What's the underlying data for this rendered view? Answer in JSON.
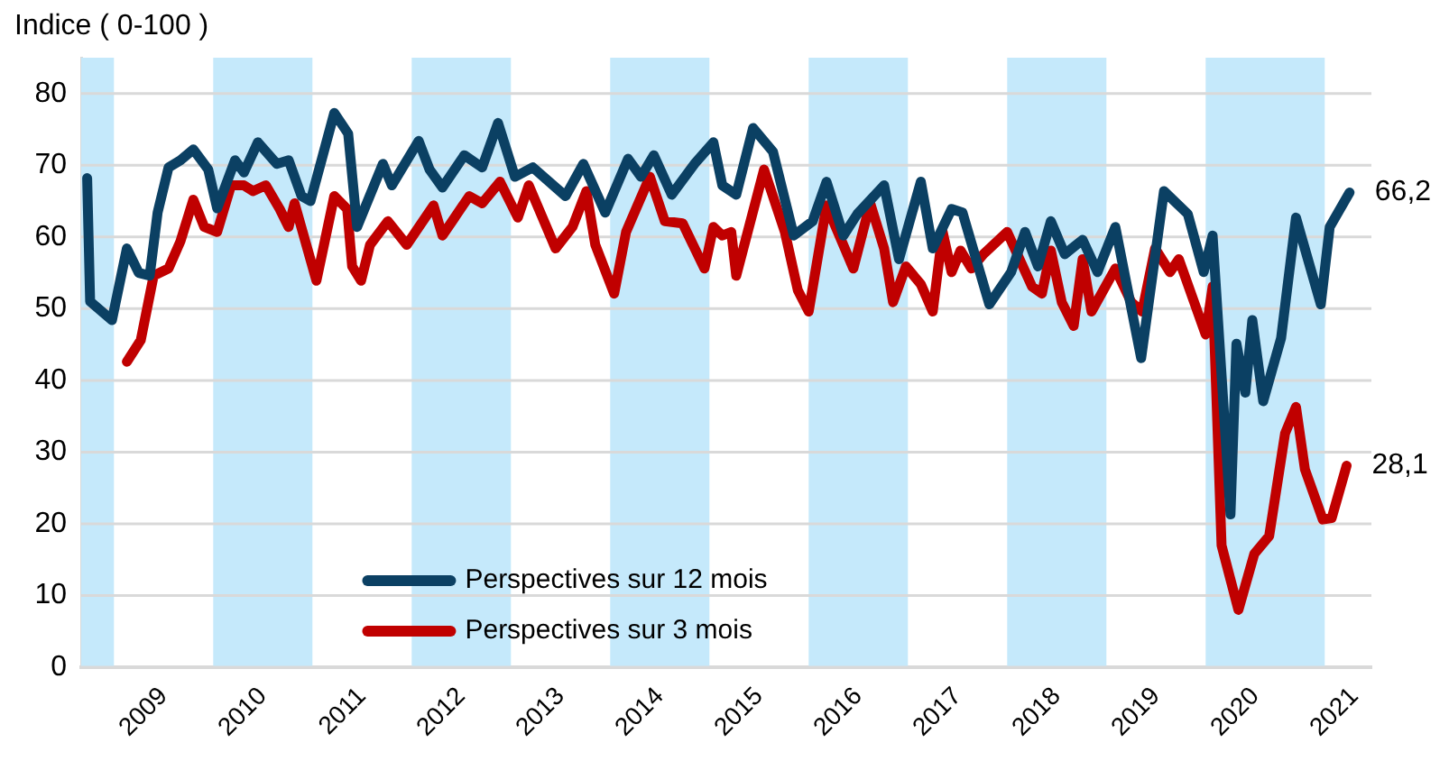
{
  "chart_data": {
    "type": "line",
    "ylabel": "Indice ( 0-100 )",
    "xlim": [
      2008.67,
      2021.67
    ],
    "ylim": [
      0,
      85
    ],
    "xticks": [
      {
        "value": 2009.5,
        "label": "2009"
      },
      {
        "value": 2010.5,
        "label": "2010"
      },
      {
        "value": 2011.5,
        "label": "2011"
      },
      {
        "value": 2012.5,
        "label": "2012"
      },
      {
        "value": 2013.5,
        "label": "2013"
      },
      {
        "value": 2014.5,
        "label": "2014"
      },
      {
        "value": 2015.5,
        "label": "2015"
      },
      {
        "value": 2016.5,
        "label": "2016"
      },
      {
        "value": 2017.5,
        "label": "2017"
      },
      {
        "value": 2018.5,
        "label": "2018"
      },
      {
        "value": 2019.5,
        "label": "2019"
      },
      {
        "value": 2020.5,
        "label": "2020"
      },
      {
        "value": 2021.5,
        "label": "2021"
      }
    ],
    "yticks": [
      0,
      10,
      20,
      30,
      40,
      50,
      60,
      70,
      80
    ],
    "grid": "y",
    "legend": "bottom",
    "marker": "none",
    "bands": [
      {
        "axis": "x",
        "from": 2008.67,
        "to": 2009,
        "color": "#c5e9fb"
      },
      {
        "axis": "x",
        "from": 2010,
        "to": 2011,
        "color": "#c5e9fb"
      },
      {
        "axis": "x",
        "from": 2012,
        "to": 2013,
        "color": "#c5e9fb"
      },
      {
        "axis": "x",
        "from": 2014,
        "to": 2015,
        "color": "#c5e9fb"
      },
      {
        "axis": "x",
        "from": 2016,
        "to": 2017,
        "color": "#c5e9fb"
      },
      {
        "axis": "x",
        "from": 2018,
        "to": 2019,
        "color": "#c5e9fb"
      },
      {
        "axis": "x",
        "from": 2020,
        "to": 2021.2,
        "color": "#c5e9fb"
      }
    ],
    "annotations": [
      {
        "text": "66,2",
        "x": 2021.45,
        "y": 66.2
      },
      {
        "text": "28,1",
        "x": 2021.42,
        "y": 28.1
      }
    ],
    "series": [
      {
        "name": "Perspectives sur 12 mois",
        "color": "#0b4063",
        "x": [
          2008.73,
          2008.76,
          2008.98,
          2009.13,
          2009.25,
          2009.36,
          2009.44,
          2009.55,
          2009.67,
          2009.8,
          2009.95,
          2010.04,
          2010.22,
          2010.31,
          2010.45,
          2010.64,
          2010.76,
          2010.89,
          2010.98,
          2011.22,
          2011.36,
          2011.45,
          2011.71,
          2011.8,
          2012.07,
          2012.18,
          2012.31,
          2012.53,
          2012.71,
          2012.87,
          2013.04,
          2013.22,
          2013.55,
          2013.73,
          2013.95,
          2014.18,
          2014.31,
          2014.44,
          2014.62,
          2014.85,
          2015.04,
          2015.13,
          2015.27,
          2015.44,
          2015.64,
          2015.85,
          2016.04,
          2016.18,
          2016.35,
          2016.49,
          2016.76,
          2016.91,
          2017.13,
          2017.25,
          2017.44,
          2017.55,
          2017.82,
          2018.04,
          2018.18,
          2018.31,
          2018.44,
          2018.58,
          2018.76,
          2018.91,
          2019.09,
          2019.35,
          2019.58,
          2019.82,
          2019.98,
          2020.07,
          2020.25,
          2020.31,
          2020.4,
          2020.47,
          2020.58,
          2020.76,
          2020.91,
          2021.16,
          2021.25,
          2021.45
        ],
        "values": [
          68.2,
          51,
          48.4,
          58.4,
          55,
          54.6,
          63.4,
          69.7,
          70.7,
          72.2,
          69.4,
          64,
          70.7,
          69,
          73.2,
          70.2,
          70.7,
          65.7,
          65,
          77.3,
          74.4,
          61.4,
          70.2,
          67.2,
          73.4,
          69.4,
          66.9,
          71.4,
          69.7,
          75.9,
          68.4,
          69.7,
          65.7,
          70.2,
          63.4,
          70.9,
          68.4,
          71.4,
          65.9,
          70.2,
          73.2,
          67.2,
          65.9,
          75.2,
          71.9,
          60.2,
          62.2,
          67.7,
          60.2,
          63.2,
          67.2,
          56.9,
          67.7,
          58.4,
          63.9,
          63.4,
          50.6,
          55.1,
          60.7,
          55.9,
          62.2,
          57.6,
          59.6,
          55.1,
          61.4,
          43.1,
          66.4,
          63.2,
          55.1,
          60.2,
          21.3,
          45.1,
          38.3,
          48.4,
          37.1,
          45.9,
          62.7,
          50.6,
          61.4,
          66.2
        ]
      },
      {
        "name": "Perspectives sur 3 mois",
        "color": "#c00000",
        "x": [
          2009.13,
          2009.27,
          2009.4,
          2009.55,
          2009.67,
          2009.8,
          2009.91,
          2010.04,
          2010.18,
          2010.31,
          2010.4,
          2010.53,
          2010.67,
          2010.76,
          2010.82,
          2011.04,
          2011.22,
          2011.35,
          2011.4,
          2011.49,
          2011.58,
          2011.76,
          2011.95,
          2012.22,
          2012.31,
          2012.58,
          2012.71,
          2012.89,
          2013.07,
          2013.18,
          2013.45,
          2013.62,
          2013.76,
          2013.85,
          2014.04,
          2014.16,
          2014.4,
          2014.55,
          2014.73,
          2014.95,
          2015.04,
          2015.13,
          2015.22,
          2015.27,
          2015.55,
          2015.76,
          2015.89,
          2016,
          2016.18,
          2016.45,
          2016.62,
          2016.76,
          2016.85,
          2016.98,
          2017.13,
          2017.25,
          2017.35,
          2017.44,
          2017.53,
          2017.64,
          2017.76,
          2018,
          2018.25,
          2018.35,
          2018.44,
          2018.55,
          2018.67,
          2018.76,
          2018.85,
          2019.09,
          2019.25,
          2019.36,
          2019.49,
          2019.64,
          2019.73,
          2020,
          2020.07,
          2020.16,
          2020.33,
          2020.49,
          2020.64,
          2020.8,
          2020.91,
          2021,
          2021.18,
          2021.27,
          2021.42
        ],
        "values": [
          42.6,
          45.6,
          54.6,
          55.6,
          59.4,
          65.2,
          61.4,
          60.7,
          67.2,
          67.2,
          66.4,
          67.2,
          63.9,
          61.4,
          64.7,
          53.9,
          65.7,
          63.9,
          55.9,
          53.9,
          58.9,
          62.2,
          58.9,
          64.4,
          60.2,
          65.7,
          64.7,
          67.7,
          62.7,
          67.2,
          58.4,
          61.4,
          66.4,
          58.9,
          52.1,
          60.7,
          68.4,
          62.2,
          61.9,
          55.6,
          61.4,
          60.2,
          60.7,
          54.6,
          69.4,
          60.7,
          52.6,
          49.6,
          64.4,
          55.6,
          64.7,
          58.4,
          50.9,
          55.9,
          53.4,
          49.6,
          60.7,
          55.1,
          58.1,
          55.6,
          57.6,
          60.7,
          53.1,
          52.1,
          58.1,
          50.9,
          47.6,
          56.9,
          49.6,
          55.6,
          50.9,
          49.6,
          58.4,
          55.1,
          56.9,
          46.4,
          53.1,
          17,
          8,
          15.8,
          18.3,
          32.6,
          36.3,
          27.6,
          20.6,
          20.8,
          28.1
        ]
      }
    ]
  }
}
